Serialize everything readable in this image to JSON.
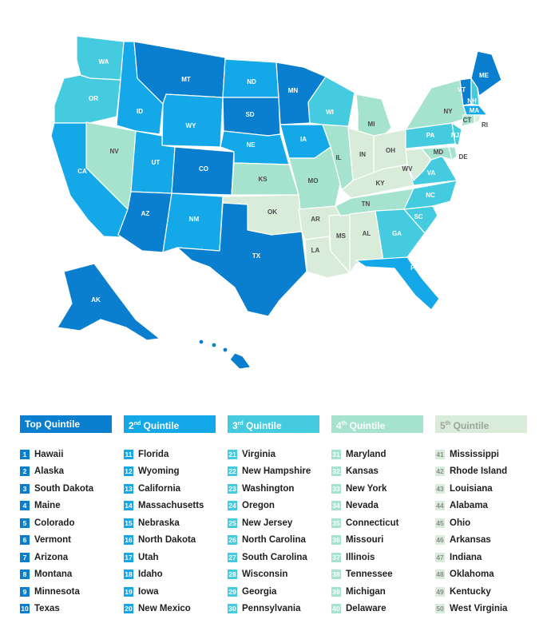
{
  "colors": {
    "q1": "#0a7fcf",
    "q2": "#14a8e8",
    "q3": "#45cbdf",
    "q4": "#a6e3cf",
    "q5": "#d9ecda",
    "legend_header_q1": "#0a7fcf",
    "legend_header_q2": "#14a8e8",
    "legend_header_q3": "#45cbdf",
    "legend_header_q4": "#a6e3cf",
    "legend_header_q5": "#d9ecda"
  },
  "map": {
    "state_labels": {
      "WA": "WA",
      "OR": "OR",
      "CA": "CA",
      "NV": "NV",
      "ID": "ID",
      "MT": "MT",
      "WY": "WY",
      "UT": "UT",
      "AZ": "AZ",
      "CO": "CO",
      "NM": "NM",
      "ND": "ND",
      "SD": "SD",
      "NE": "NE",
      "KS": "KS",
      "OK": "OK",
      "TX": "TX",
      "MN": "MN",
      "IA": "IA",
      "MO": "MO",
      "AR": "AR",
      "LA": "LA",
      "WI": "WI",
      "IL": "IL",
      "MS": "MS",
      "MI": "MI",
      "IN": "IN",
      "KY": "KY",
      "TN": "TN",
      "AL": "AL",
      "OH": "OH",
      "WV": "WV",
      "GA": "GA",
      "FL": "FL",
      "SC": "SC",
      "NC": "NC",
      "VA": "VA",
      "PA": "PA",
      "NY": "NY",
      "VT": "VT",
      "NH": "NH",
      "ME": "ME",
      "MA": "MA",
      "CT": "CT",
      "RI": "RI",
      "NJ": "NJ",
      "DE": "DE",
      "MD": "MD",
      "AK": "AK",
      "HI": "HI"
    }
  },
  "legend": {
    "columns": [
      {
        "header_main": "Top Quintile",
        "header_sup": "",
        "header_rest": "",
        "quintile": "q1",
        "items": [
          {
            "rank": "1",
            "state": "Hawaii"
          },
          {
            "rank": "2",
            "state": "Alaska"
          },
          {
            "rank": "3",
            "state": "South Dakota"
          },
          {
            "rank": "4",
            "state": "Maine"
          },
          {
            "rank": "5",
            "state": "Colorado"
          },
          {
            "rank": "6",
            "state": "Vermont"
          },
          {
            "rank": "7",
            "state": "Arizona"
          },
          {
            "rank": "8",
            "state": "Montana"
          },
          {
            "rank": "9",
            "state": "Minnesota"
          },
          {
            "rank": "10",
            "state": "Texas"
          }
        ]
      },
      {
        "header_main": "2",
        "header_sup": "nd",
        "header_rest": " Quintile",
        "quintile": "q2",
        "items": [
          {
            "rank": "11",
            "state": "Florida"
          },
          {
            "rank": "12",
            "state": "Wyoming"
          },
          {
            "rank": "13",
            "state": "California"
          },
          {
            "rank": "14",
            "state": "Massachusetts"
          },
          {
            "rank": "15",
            "state": "Nebraska"
          },
          {
            "rank": "16",
            "state": "North Dakota"
          },
          {
            "rank": "17",
            "state": "Utah"
          },
          {
            "rank": "18",
            "state": "Idaho"
          },
          {
            "rank": "19",
            "state": "Iowa"
          },
          {
            "rank": "20",
            "state": "New Mexico"
          }
        ]
      },
      {
        "header_main": "3",
        "header_sup": "rd",
        "header_rest": " Quintile",
        "quintile": "q3",
        "items": [
          {
            "rank": "21",
            "state": "Virginia"
          },
          {
            "rank": "22",
            "state": "New Hampshire"
          },
          {
            "rank": "23",
            "state": "Washington"
          },
          {
            "rank": "24",
            "state": "Oregon"
          },
          {
            "rank": "25",
            "state": "New Jersey"
          },
          {
            "rank": "26",
            "state": "North Carolina"
          },
          {
            "rank": "27",
            "state": "South Carolina"
          },
          {
            "rank": "28",
            "state": "Wisconsin"
          },
          {
            "rank": "29",
            "state": "Georgia"
          },
          {
            "rank": "30",
            "state": "Pennsylvania"
          }
        ]
      },
      {
        "header_main": "4",
        "header_sup": "th",
        "header_rest": " Quintile",
        "quintile": "q4",
        "items": [
          {
            "rank": "31",
            "state": "Maryland"
          },
          {
            "rank": "32",
            "state": "Kansas"
          },
          {
            "rank": "33",
            "state": "New York"
          },
          {
            "rank": "34",
            "state": "Nevada"
          },
          {
            "rank": "35",
            "state": "Connecticut"
          },
          {
            "rank": "36",
            "state": "Missouri"
          },
          {
            "rank": "37",
            "state": "Illinois"
          },
          {
            "rank": "38",
            "state": "Tennessee"
          },
          {
            "rank": "39",
            "state": "Michigan"
          },
          {
            "rank": "40",
            "state": "Delaware"
          }
        ]
      },
      {
        "header_main": "5",
        "header_sup": "th",
        "header_rest": " Quintile",
        "quintile": "q5",
        "items": [
          {
            "rank": "41",
            "state": "Mississippi"
          },
          {
            "rank": "42",
            "state": "Rhode Island"
          },
          {
            "rank": "43",
            "state": "Louisiana"
          },
          {
            "rank": "44",
            "state": "Alabama"
          },
          {
            "rank": "45",
            "state": "Ohio"
          },
          {
            "rank": "46",
            "state": "Arkansas"
          },
          {
            "rank": "47",
            "state": "Indiana"
          },
          {
            "rank": "48",
            "state": "Oklahoma"
          },
          {
            "rank": "49",
            "state": "Kentucky"
          },
          {
            "rank": "50",
            "state": "West Virginia"
          }
        ]
      }
    ]
  }
}
